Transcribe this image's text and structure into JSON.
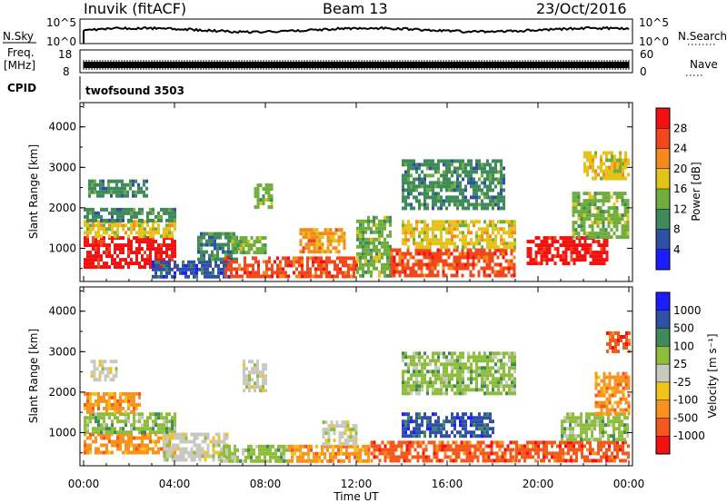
{
  "header": {
    "station": "Inuvik (fitACF)",
    "beam": "Beam 13",
    "date": "23/Oct/2016"
  },
  "top_panels": {
    "nsky_label": "N.Sky",
    "nsky_ticks": [
      "10^5",
      "10^0"
    ],
    "nsearch_label": "N.Search",
    "freq_label_1": "Freq.",
    "freq_label_2": "[MHz]",
    "freq_ticks": [
      "18",
      "8"
    ],
    "nave_label": "Nave",
    "nave_ticks": [
      "60",
      "0"
    ],
    "cpid_label": "CPID",
    "cpid_value": "twofsound 3503"
  },
  "colors": {
    "power": [
      "#1c1cff",
      "#2e51a6",
      "#3e8a5a",
      "#6fae3c",
      "#e3c21a",
      "#f58a1c",
      "#f0481b",
      "#f21010"
    ],
    "velocity": [
      "#f21010",
      "#f5581b",
      "#f7931e",
      "#f2c31b",
      "#c8c8c0",
      "#8dbd3a",
      "#3e8a5a",
      "#2e51a6",
      "#1c1cff"
    ]
  },
  "chart_data": [
    {
      "type": "heatmap",
      "name": "power",
      "xlabel": "",
      "ylabel": "Slant Range [km]",
      "ylim": [
        180,
        4600
      ],
      "y_ticks": [
        "1000",
        "2000",
        "3000",
        "4000"
      ],
      "colorbar_label": "Power [dB]",
      "colorbar_ticks": [
        "4",
        "8",
        "12",
        "16",
        "20",
        "24",
        "28"
      ],
      "bands": [
        {
          "t0": 0.0,
          "t1": 4.0,
          "r0": 500,
          "r1": 1300,
          "v": 28
        },
        {
          "t0": 0.0,
          "t1": 4.0,
          "r0": 1300,
          "r1": 1700,
          "v": 18
        },
        {
          "t0": 0.0,
          "t1": 4.0,
          "r0": 1700,
          "r1": 2000,
          "v": 8
        },
        {
          "t0": 0.2,
          "t1": 2.8,
          "r0": 2300,
          "r1": 2700,
          "v": 10
        },
        {
          "t0": 3.0,
          "t1": 6.4,
          "r0": 300,
          "r1": 700,
          "v": 6
        },
        {
          "t0": 5.0,
          "t1": 6.8,
          "r0": 700,
          "r1": 1400,
          "v": 8
        },
        {
          "t0": 6.2,
          "t1": 12.0,
          "r0": 300,
          "r1": 800,
          "v": 26
        },
        {
          "t0": 6.5,
          "t1": 8.0,
          "r0": 900,
          "r1": 1300,
          "v": 14
        },
        {
          "t0": 7.5,
          "t1": 8.3,
          "r0": 2000,
          "r1": 2600,
          "v": 12
        },
        {
          "t0": 9.5,
          "t1": 11.5,
          "r0": 900,
          "r1": 1500,
          "v": 20
        },
        {
          "t0": 12.0,
          "t1": 13.5,
          "r0": 300,
          "r1": 1800,
          "v": 12
        },
        {
          "t0": 13.5,
          "t1": 19.0,
          "r0": 300,
          "r1": 1000,
          "v": 24
        },
        {
          "t0": 14.0,
          "t1": 19.0,
          "r0": 1000,
          "r1": 1700,
          "v": 16
        },
        {
          "t0": 14.0,
          "t1": 18.5,
          "r0": 2000,
          "r1": 3200,
          "v": 10
        },
        {
          "t0": 19.5,
          "t1": 23.0,
          "r0": 600,
          "r1": 1300,
          "v": 28
        },
        {
          "t0": 21.5,
          "t1": 24.0,
          "r0": 1300,
          "r1": 2400,
          "v": 14
        },
        {
          "t0": 22.0,
          "t1": 24.0,
          "r0": 2700,
          "r1": 3400,
          "v": 18
        }
      ]
    },
    {
      "type": "heatmap",
      "name": "velocity",
      "xlabel": "Time UT",
      "ylabel": "Slant Range [km]",
      "ylim": [
        180,
        4600
      ],
      "x_ticks": [
        "00:00",
        "04:00",
        "08:00",
        "12:00",
        "16:00",
        "20:00",
        "00:00"
      ],
      "y_ticks": [
        "1000",
        "2000",
        "3000",
        "4000"
      ],
      "colorbar_label": "Velocity [m s⁻¹]",
      "colorbar_ticks": [
        "1000",
        "500",
        "100",
        "25",
        "-25",
        "-100",
        "-500",
        "-1000"
      ],
      "bands": [
        {
          "t0": 0.0,
          "t1": 4.0,
          "r0": 500,
          "r1": 1000,
          "v": -100
        },
        {
          "t0": 0.0,
          "t1": 4.0,
          "r0": 1000,
          "r1": 1500,
          "v": 100
        },
        {
          "t0": 0.0,
          "t1": 2.5,
          "r0": 1500,
          "r1": 2000,
          "v": -100
        },
        {
          "t0": 0.3,
          "t1": 1.5,
          "r0": 2300,
          "r1": 2800,
          "v": 0
        },
        {
          "t0": 3.5,
          "t1": 6.5,
          "r0": 300,
          "r1": 1000,
          "v": 0
        },
        {
          "t0": 6.0,
          "t1": 9.0,
          "r0": 300,
          "r1": 700,
          "v": 100
        },
        {
          "t0": 7.0,
          "t1": 8.0,
          "r0": 2000,
          "r1": 2800,
          "v": 0
        },
        {
          "t0": 9.0,
          "t1": 12.5,
          "r0": 300,
          "r1": 700,
          "v": -100
        },
        {
          "t0": 10.5,
          "t1": 12.0,
          "r0": 700,
          "r1": 1300,
          "v": 0
        },
        {
          "t0": 12.5,
          "t1": 19.0,
          "r0": 300,
          "r1": 800,
          "v": -500
        },
        {
          "t0": 14.0,
          "t1": 18.0,
          "r0": 900,
          "r1": 1500,
          "v": 1000
        },
        {
          "t0": 14.0,
          "t1": 19.0,
          "r0": 2000,
          "r1": 3000,
          "v": 100
        },
        {
          "t0": 19.0,
          "t1": 24.0,
          "r0": 300,
          "r1": 800,
          "v": -500
        },
        {
          "t0": 21.0,
          "t1": 24.0,
          "r0": 800,
          "r1": 1500,
          "v": 100
        },
        {
          "t0": 22.5,
          "t1": 24.0,
          "r0": 1500,
          "r1": 2500,
          "v": -100
        },
        {
          "t0": 23.0,
          "t1": 24.0,
          "r0": 3000,
          "r1": 3500,
          "v": -500
        }
      ]
    }
  ]
}
